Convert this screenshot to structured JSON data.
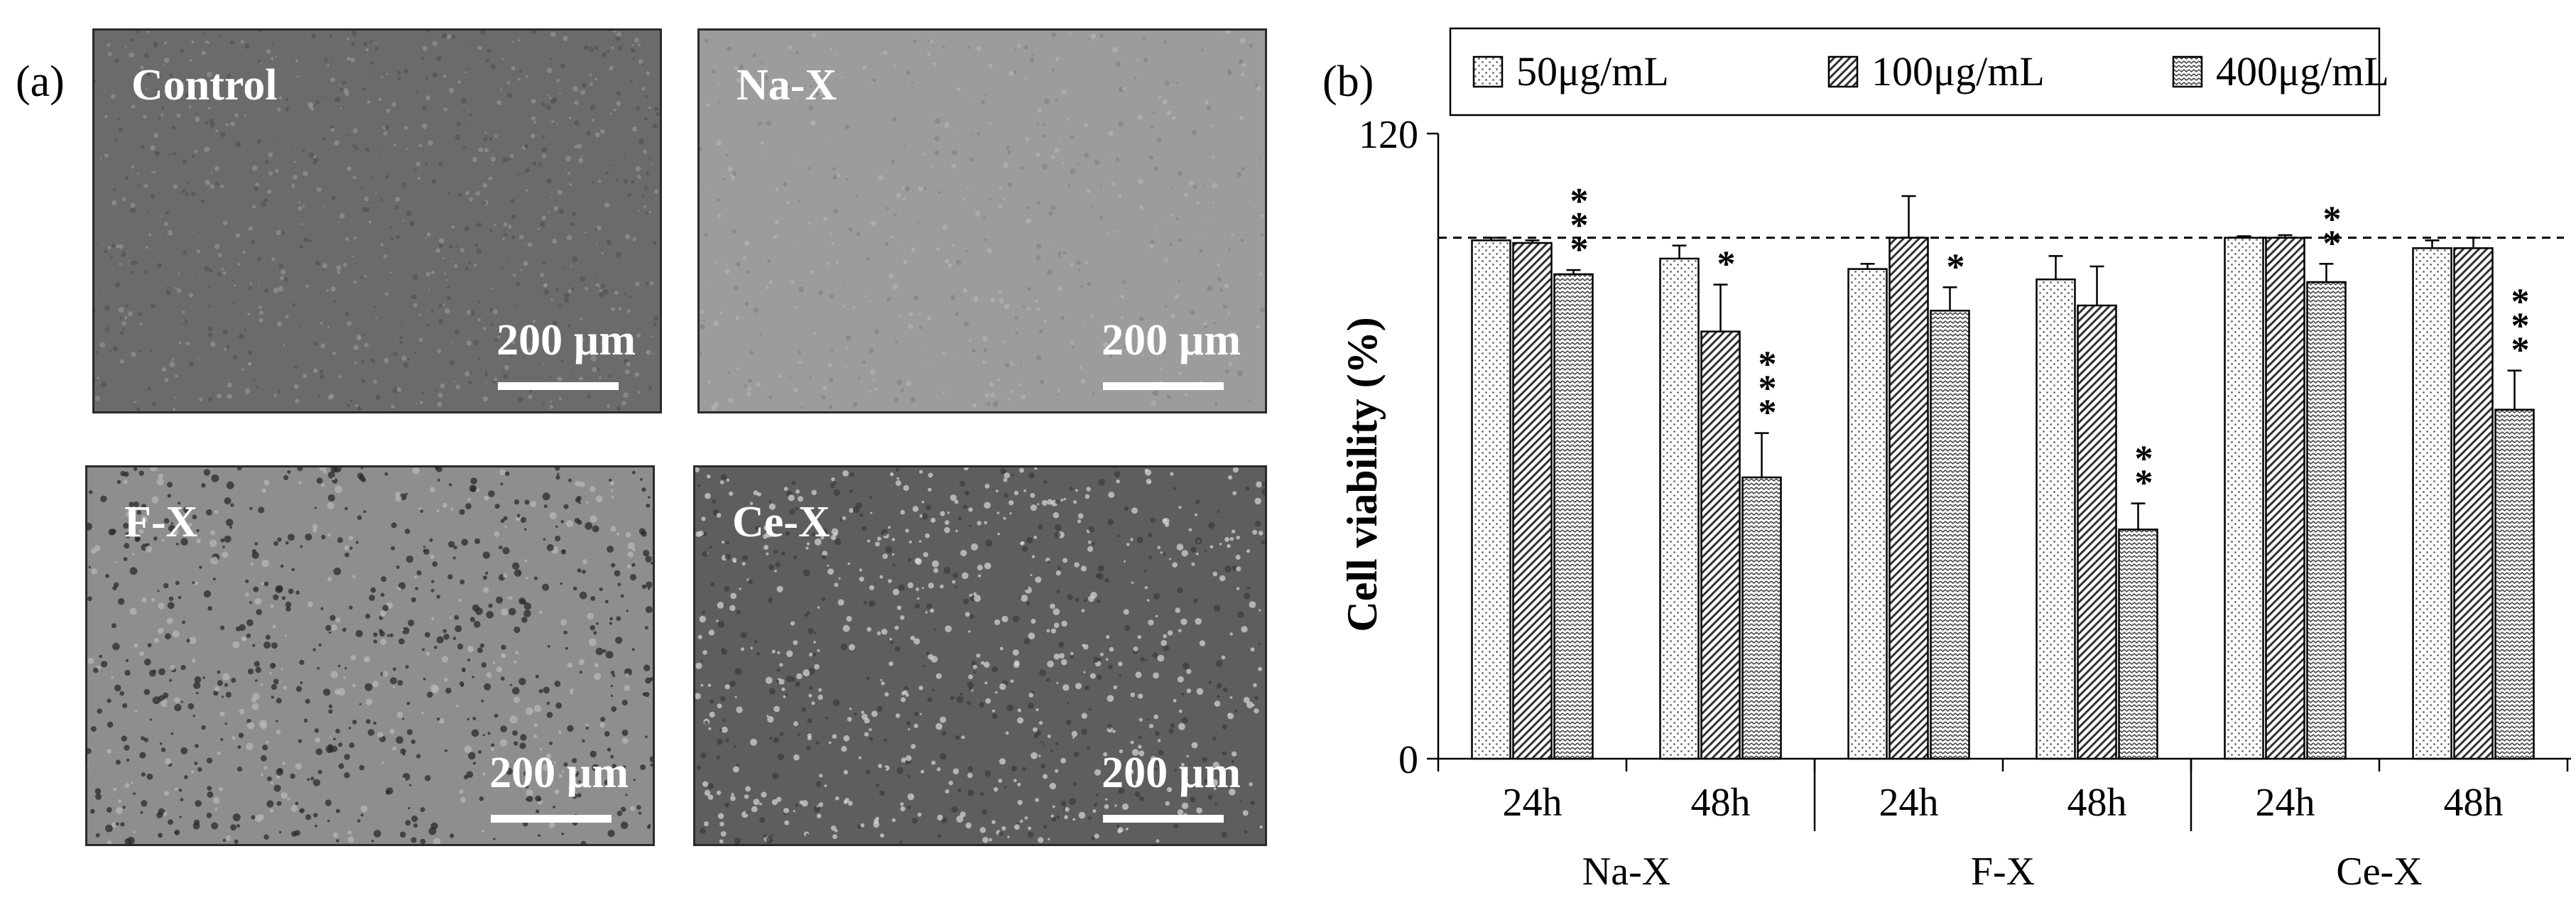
{
  "panel_a": {
    "label": "(a)",
    "images": [
      {
        "title": "Control",
        "scale_text": "200 µm",
        "tone": "#6b6b6b",
        "texture": "fine"
      },
      {
        "title": "Na-X",
        "scale_text": "200 µm",
        "tone": "#9c9c9c",
        "texture": "light"
      },
      {
        "title": "F-X",
        "scale_text": "200 µm",
        "tone": "#8e8e8e",
        "texture": "dots"
      },
      {
        "title": "Ce-X",
        "scale_text": "200 µm",
        "tone": "#5e5e5e",
        "texture": "clusters"
      }
    ]
  },
  "panel_b": {
    "label": "(b)"
  },
  "chart_data": {
    "type": "bar",
    "ylabel": "Cell viability (%)",
    "ylim": [
      0,
      120
    ],
    "yticks": [
      0,
      120
    ],
    "reference_line": 100,
    "legend_position": "top",
    "groups": [
      {
        "name": "Na-X",
        "timepoints": [
          "24h",
          "48h"
        ]
      },
      {
        "name": "F-X",
        "timepoints": [
          "24h",
          "48h"
        ]
      },
      {
        "name": "Ce-X",
        "timepoints": [
          "24h",
          "48h"
        ]
      }
    ],
    "series": [
      {
        "name": "50μg/mL",
        "pattern": "dots",
        "values": [
          99.5,
          96,
          94,
          92,
          100,
          98
        ],
        "errors": [
          0.5,
          2.5,
          1,
          4.5,
          0.3,
          1.5
        ],
        "significance": [
          "",
          "",
          "",
          "",
          "",
          ""
        ]
      },
      {
        "name": "100μg/mL",
        "pattern": "diagonal",
        "values": [
          99,
          82,
          100,
          87,
          100,
          98
        ],
        "errors": [
          0.5,
          9,
          8,
          7.5,
          0.5,
          2
        ],
        "significance": [
          "",
          "*",
          "",
          "",
          "",
          ""
        ]
      },
      {
        "name": "400μg/mL",
        "pattern": "zigzag",
        "values": [
          93,
          54,
          86,
          44,
          91.5,
          67
        ],
        "errors": [
          0.8,
          8.5,
          4.5,
          5,
          3.5,
          7.5
        ],
        "significance": [
          "***",
          "***",
          "*",
          "**",
          "**",
          "***"
        ]
      }
    ]
  }
}
